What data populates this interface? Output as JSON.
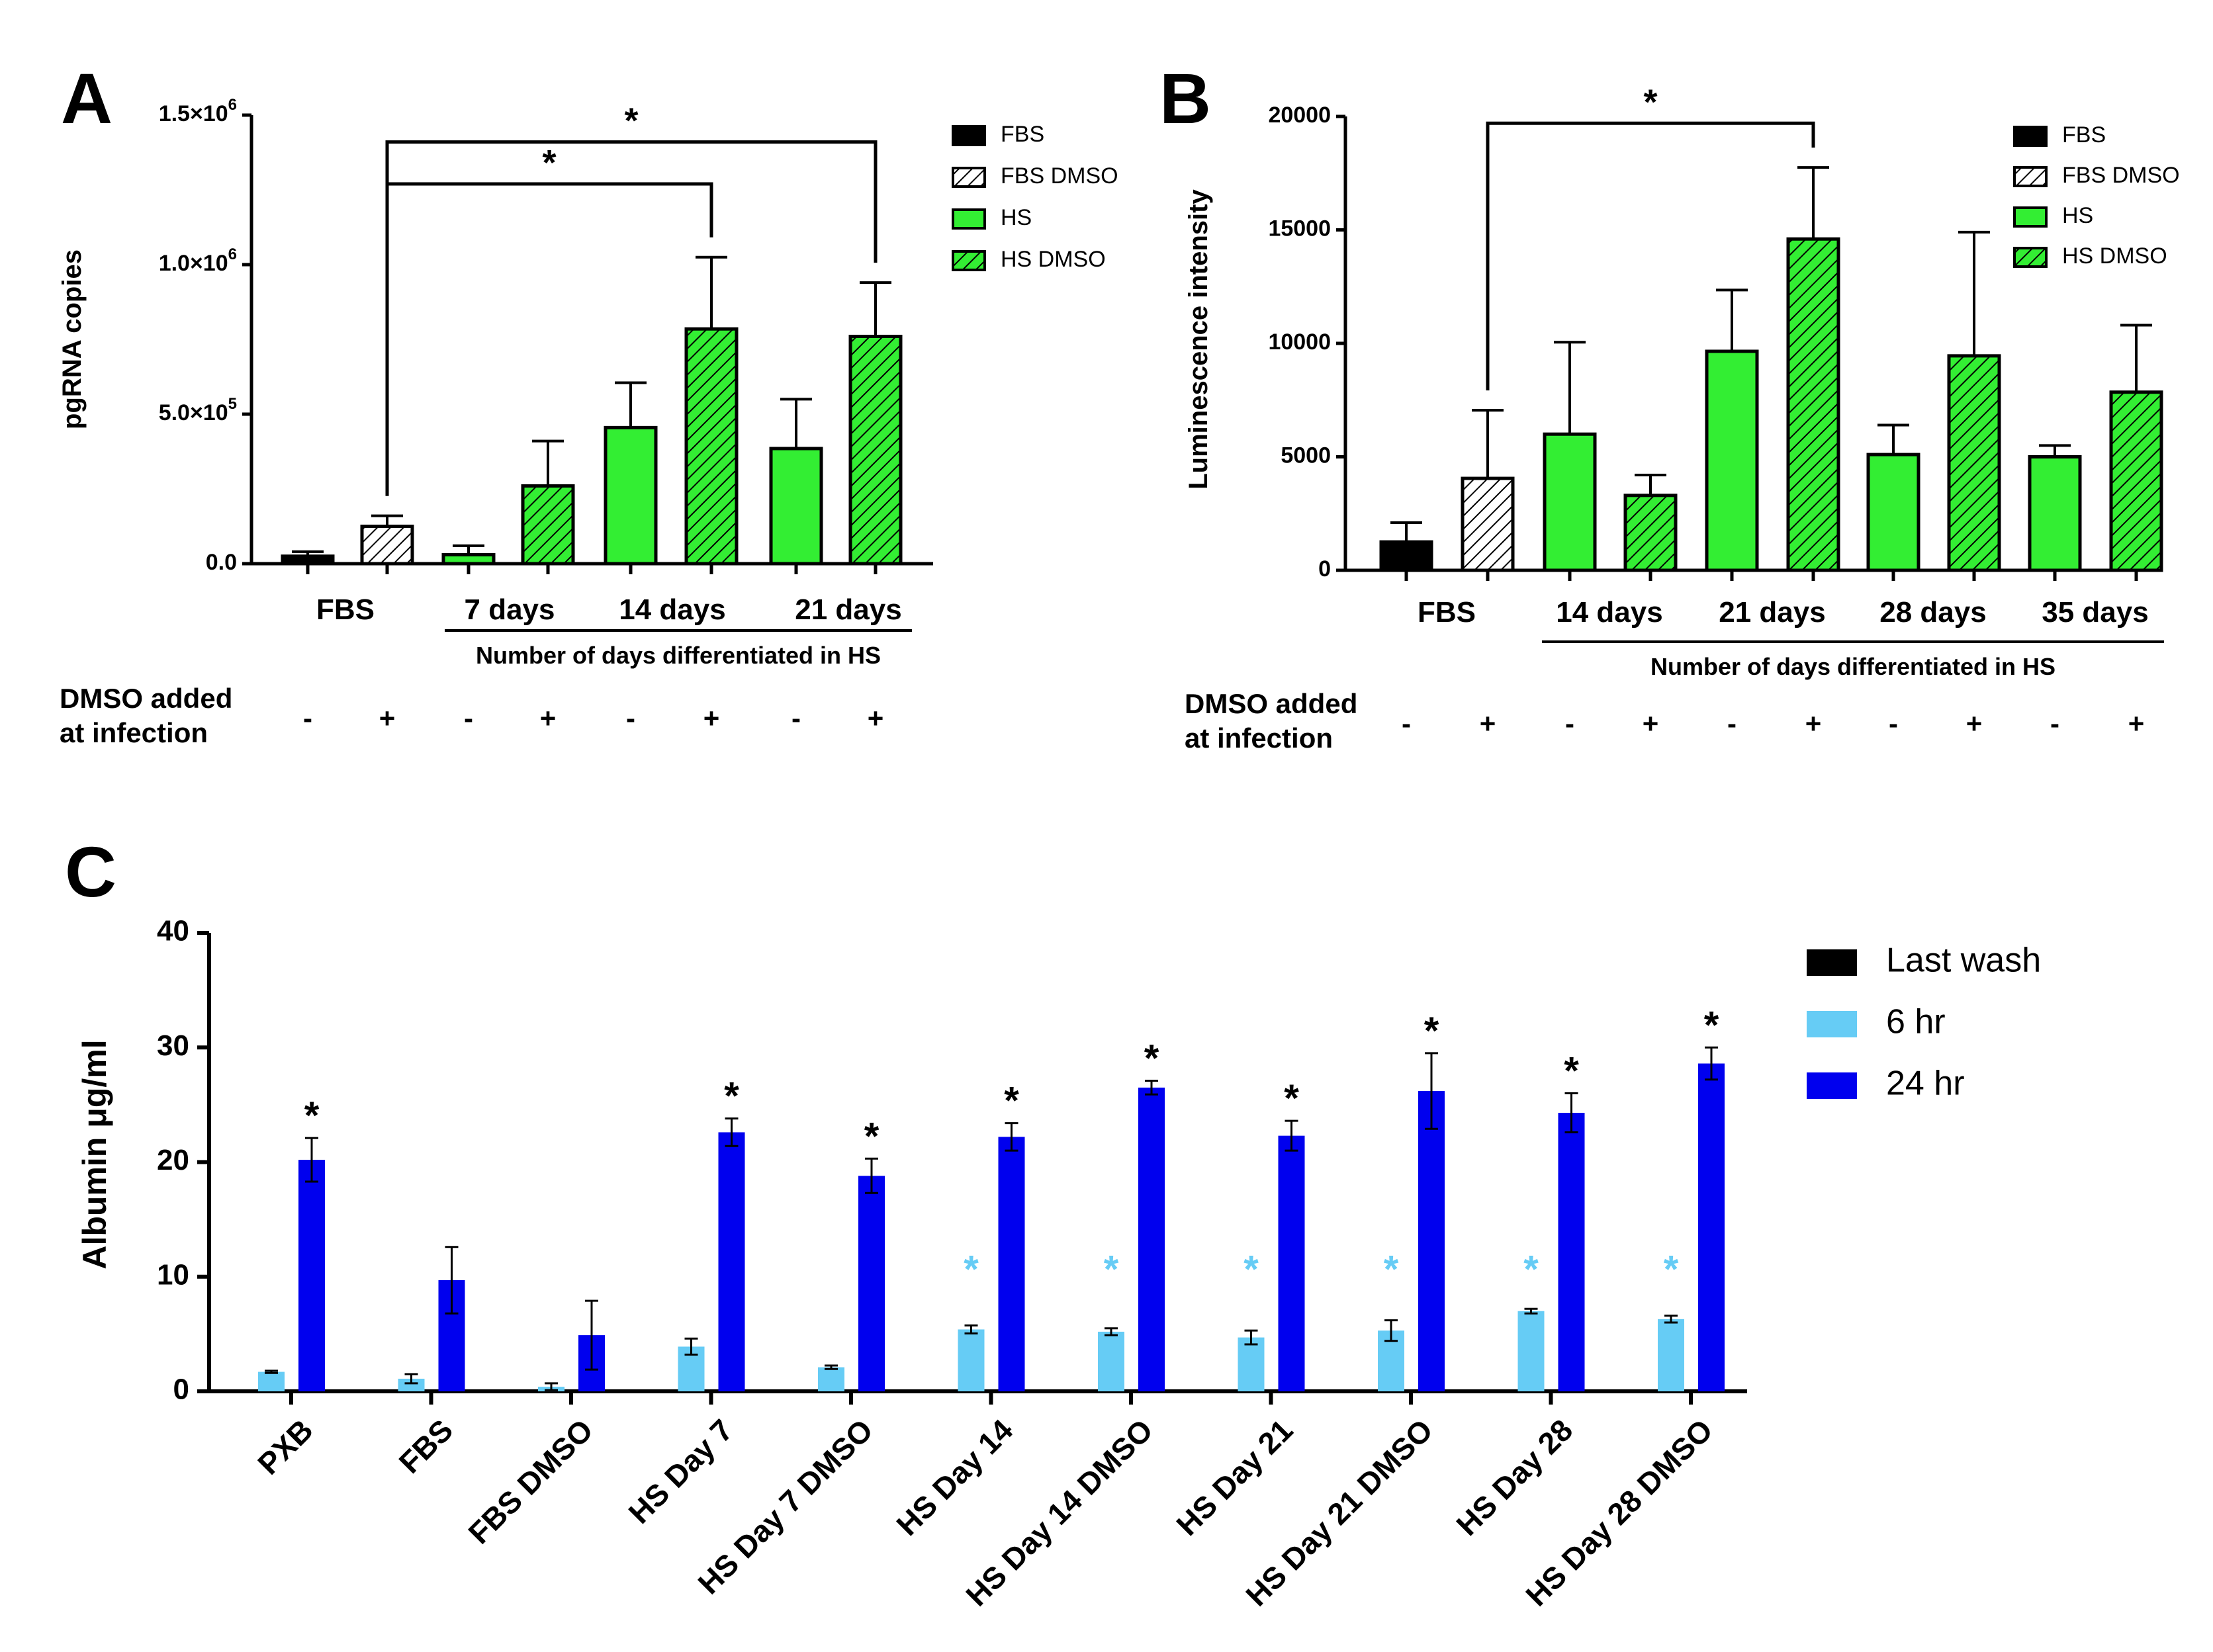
{
  "colors": {
    "fbs": "#000000",
    "hs": "#33ee33",
    "last_wash": "#000000",
    "six_hr": "#66ccf5",
    "twentyfour_hr": "#0000ee",
    "star_light": "#66ccf5"
  },
  "chart_data": [
    {
      "panel": "A",
      "type": "bar",
      "ylabel": "pgRNA copies",
      "ylim": [
        0,
        1500000
      ],
      "ytick_labels": [
        "0.0",
        "5.0×10⁵",
        "1.0×10⁶",
        "1.5×10⁶"
      ],
      "yticks": [
        0,
        500000,
        1000000,
        1500000
      ],
      "bars": [
        {
          "series": "FBS",
          "value": 25000,
          "error": 15000
        },
        {
          "series": "FBS DMSO",
          "value": 125000,
          "error": 35000
        },
        {
          "series": "HS",
          "value": 30000,
          "error": 30000
        },
        {
          "series": "HS DMSO",
          "value": 260000,
          "error": 150000
        },
        {
          "series": "HS",
          "value": 455000,
          "error": 150000
        },
        {
          "series": "HS DMSO",
          "value": 785000,
          "error": 240000
        },
        {
          "series": "HS",
          "value": 385000,
          "error": 165000
        },
        {
          "series": "HS DMSO",
          "value": 760000,
          "error": 180000
        }
      ],
      "group_labels": [
        "FBS",
        "7 days",
        "14 days",
        "21 days"
      ],
      "xlabel": "Number of days differentiated in HS",
      "dmso_label_line1": "DMSO added",
      "dmso_label_line2": "at infection",
      "dmso_signs": [
        "-",
        "+",
        "-",
        "+",
        "-",
        "+",
        "-",
        "+"
      ],
      "legend": [
        "FBS",
        "FBS DMSO",
        "HS",
        "HS DMSO"
      ],
      "significance": [
        {
          "from_bar": 1,
          "to_bar": 5,
          "label": "*",
          "y": 1270000
        },
        {
          "from_bar": 1,
          "to_bar": 7,
          "label": "*",
          "y": 1410000
        }
      ]
    },
    {
      "panel": "B",
      "type": "bar",
      "ylabel": "Luminescence intensity",
      "ylim": [
        0,
        20000
      ],
      "ytick_labels": [
        "0",
        "5000",
        "10000",
        "15000",
        "20000"
      ],
      "yticks": [
        0,
        5000,
        10000,
        15000,
        20000
      ],
      "bars": [
        {
          "series": "FBS",
          "value": 1250,
          "error": 850
        },
        {
          "series": "FBS DMSO",
          "value": 4050,
          "error": 3000
        },
        {
          "series": "HS",
          "value": 6000,
          "error": 4050
        },
        {
          "series": "HS DMSO",
          "value": 3300,
          "error": 900
        },
        {
          "series": "HS",
          "value": 9650,
          "error": 2700
        },
        {
          "series": "HS DMSO",
          "value": 14600,
          "error": 3150
        },
        {
          "series": "HS",
          "value": 5100,
          "error": 1300
        },
        {
          "series": "HS DMSO",
          "value": 9450,
          "error": 5450
        },
        {
          "series": "HS",
          "value": 5000,
          "error": 500
        },
        {
          "series": "HS DMSO",
          "value": 7850,
          "error": 2950
        }
      ],
      "group_labels": [
        "FBS",
        "14 days",
        "21 days",
        "28 days",
        "35 days"
      ],
      "xlabel": "Number of days differentiated in HS",
      "dmso_label_line1": "DMSO added",
      "dmso_label_line2": "at infection",
      "dmso_signs": [
        "-",
        "+",
        "-",
        "+",
        "-",
        "+",
        "-",
        "+",
        "-",
        "+"
      ],
      "legend": [
        "FBS",
        "FBS DMSO",
        "HS",
        "HS DMSO"
      ],
      "significance": [
        {
          "from_bar": 1,
          "to_bar": 5,
          "label": "*",
          "y": 19700
        }
      ]
    },
    {
      "panel": "C",
      "type": "bar",
      "ylabel": "Albumin μg/ml",
      "ylim": [
        0,
        40
      ],
      "ytick_labels": [
        "0",
        "10",
        "20",
        "30",
        "40"
      ],
      "yticks": [
        0,
        10,
        20,
        30,
        40
      ],
      "categories": [
        "PXB",
        "FBS",
        "FBS DMSO",
        "HS Day 7",
        "HS Day 7 DMSO",
        "HS Day 14",
        "HS Day 14 DMSO",
        "HS Day 21",
        "HS Day 21 DMSO",
        "HS Day 28",
        "HS Day 28 DMSO"
      ],
      "legend": [
        "Last wash",
        "6 hr",
        "24 hr"
      ],
      "series": [
        {
          "name": "Last wash",
          "values": [
            0,
            0,
            0,
            0,
            0,
            0,
            0,
            0,
            0,
            0,
            0
          ],
          "errors": [
            0,
            0,
            0,
            0,
            0,
            0,
            0,
            0,
            0,
            0,
            0
          ]
        },
        {
          "name": "6 hr",
          "values": [
            1.7,
            1.1,
            0.4,
            3.9,
            2.1,
            5.4,
            5.2,
            4.7,
            5.3,
            7.0,
            6.3
          ],
          "errors": [
            0.1,
            0.4,
            0.3,
            0.7,
            0.15,
            0.35,
            0.3,
            0.6,
            0.9,
            0.2,
            0.3
          ]
        },
        {
          "name": "24 hr",
          "values": [
            20.2,
            9.7,
            4.9,
            22.6,
            18.8,
            22.2,
            26.5,
            22.3,
            26.2,
            24.3,
            28.6
          ],
          "errors": [
            1.9,
            2.9,
            3.0,
            1.2,
            1.5,
            1.2,
            0.6,
            1.3,
            3.3,
            1.7,
            1.4
          ]
        }
      ],
      "stars_24hr": [
        "*",
        "",
        "",
        "*",
        "*",
        "*",
        "*",
        "*",
        "*",
        "*",
        "*"
      ],
      "stars_6hr": [
        "",
        "",
        "",
        "",
        "",
        "*",
        "*",
        "*",
        "*",
        "*",
        "*"
      ]
    }
  ]
}
